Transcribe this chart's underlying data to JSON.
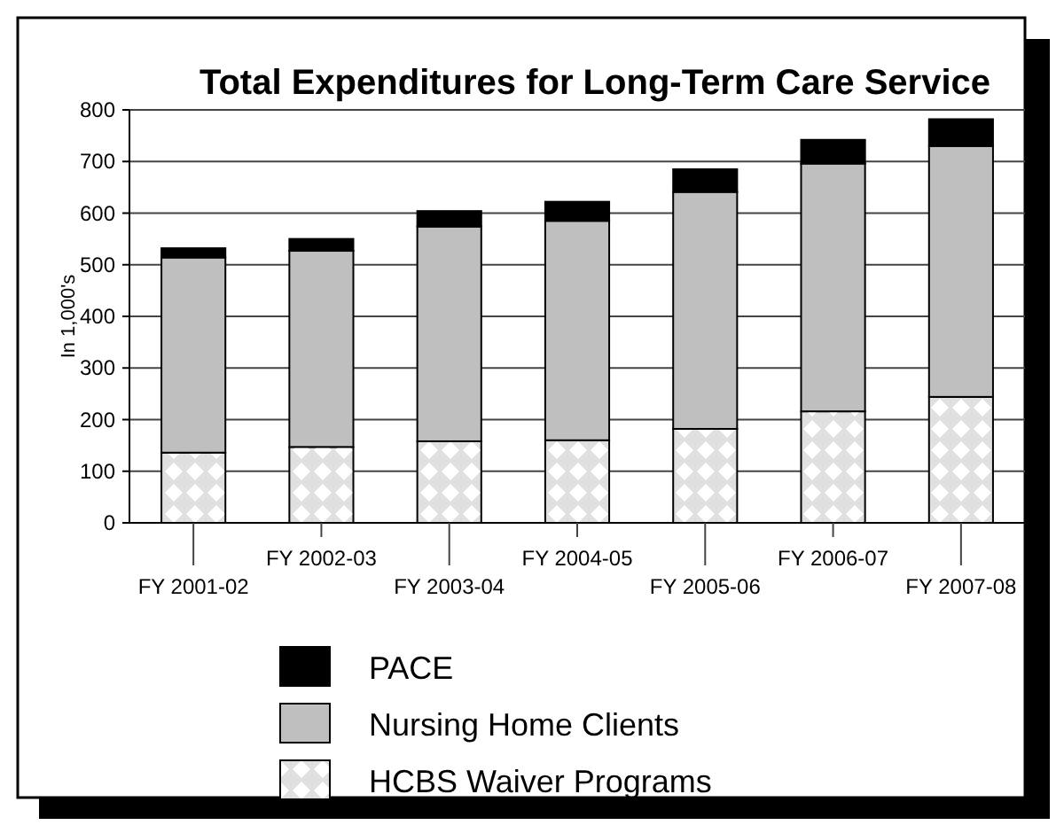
{
  "chart_data": {
    "type": "bar",
    "title": "Total Expenditures for Long-Term Care Service",
    "ylabel": "In 1,000's",
    "categories": [
      "FY 2001-02",
      "FY 2002-03",
      "FY 2003-04",
      "FY 2004-05",
      "FY 2005-06",
      "FY 2006-07",
      "FY 2007-08"
    ],
    "stacked": true,
    "ylim": [
      0,
      800
    ],
    "yticks": [
      0,
      100,
      200,
      300,
      400,
      500,
      600,
      700,
      800
    ],
    "grid": "y",
    "legend": "bottom",
    "series": [
      {
        "name": "HCBS Waiver Programs",
        "color": "#e0e0e0",
        "values": [
          136,
          147,
          158,
          160,
          182,
          216,
          244
        ]
      },
      {
        "name": "Nursing Home Clients",
        "color": "#bfbfbf",
        "values": [
          378,
          380,
          416,
          425,
          459,
          480,
          486
        ]
      },
      {
        "name": "PACE",
        "color": "#000000",
        "values": [
          18,
          23,
          30,
          37,
          44,
          46,
          52
        ]
      }
    ]
  }
}
